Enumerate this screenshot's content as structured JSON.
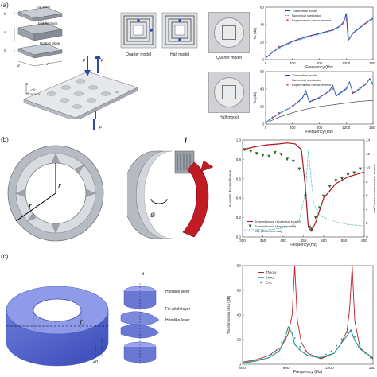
{
  "panels": {
    "a": {
      "label": "(a)",
      "layers": {
        "top": "Top plate",
        "middle": "Middle layer",
        "bottom": "Bottom plate"
      },
      "dims": {
        "h1": "h",
        "H": "H",
        "h2": "h",
        "d1": "d",
        "d2": "d"
      },
      "waves": {
        "pi": "p",
        "pr": "p",
        "pt": "p"
      },
      "models": {
        "quarter": "Quarter model",
        "half": "Half model"
      },
      "photo_captions": {
        "quarter": "Quarter model",
        "half": "Half model"
      },
      "axes": {
        "x": "x",
        "y": "y",
        "z": "z"
      }
    },
    "b": {
      "label": "(b)",
      "dims": {
        "r1": "r",
        "r2": "r",
        "l": "l",
        "phi": "ø"
      }
    },
    "c": {
      "label": "(c)",
      "dims": {
        "D": "D",
        "d": "d",
        "h2": "2h"
      },
      "layer_labels": {
        "upper": "Hornlike layer",
        "middle": "Fix-pitch layer",
        "lower": "Hornlike layer"
      }
    }
  },
  "chart_data": [
    {
      "id": "a-top",
      "type": "line",
      "xlabel": "Frequency (Hz)",
      "ylabel": "TL (dB)",
      "xlim": [
        0,
        1600
      ],
      "ylim": [
        0,
        60
      ],
      "xticks": [
        "0",
        "400",
        "800",
        "1200",
        "1600"
      ],
      "yticks": [
        "0",
        "20",
        "40",
        "60"
      ],
      "legend": [
        "Theoretical model",
        "Numerical simulation",
        "Experimental measurement"
      ],
      "colors": {
        "theory": "#1f3fa8",
        "sim": "#5aa0e0",
        "exp": "#e04040"
      },
      "series": [
        {
          "name": "Theoretical model",
          "x": [
            0,
            100,
            200,
            400,
            600,
            800,
            1000,
            1100,
            1150,
            1180,
            1200,
            1230,
            1300,
            1400,
            1500,
            1600
          ],
          "y": [
            2,
            8,
            14,
            21,
            26,
            30,
            34,
            38,
            42,
            47,
            53,
            22,
            30,
            36,
            42,
            47
          ]
        },
        {
          "name": "Numerical simulation",
          "x": [
            0,
            100,
            200,
            400,
            600,
            800,
            1000,
            1100,
            1150,
            1180,
            1210,
            1240,
            1300,
            1400,
            1500,
            1600
          ],
          "y": [
            2,
            8,
            13,
            20,
            25,
            29,
            33,
            37,
            41,
            46,
            52,
            23,
            31,
            37,
            43,
            48
          ]
        },
        {
          "name": "Experimental measurement",
          "x": [
            100,
            200,
            300,
            400,
            500,
            600,
            700,
            800,
            900,
            1000,
            1100,
            1150,
            1200,
            1250,
            1300,
            1400,
            1500
          ],
          "y": [
            9,
            15,
            18,
            21,
            24,
            26,
            28,
            30,
            32,
            34,
            38,
            41,
            45,
            24,
            30,
            36,
            42
          ]
        }
      ]
    },
    {
      "id": "a-bottom",
      "type": "line",
      "xlabel": "Frequency (Hz)",
      "ylabel": "TL (dB)",
      "xlim": [
        0,
        1600
      ],
      "ylim": [
        0,
        60
      ],
      "xticks": [
        "0",
        "400",
        "800",
        "1200",
        "1600"
      ],
      "yticks": [
        "0",
        "20",
        "40",
        "60"
      ],
      "legend": [
        "Theoretical model",
        "Numerical simulation",
        "Experimental measurement"
      ],
      "colors": {
        "theory": "#1f3fa8",
        "sim": "#5aa0e0",
        "exp": "#e04040",
        "ref": "#333333"
      },
      "series": [
        {
          "name": "Theoretical model",
          "x": [
            0,
            200,
            400,
            550,
            600,
            650,
            800,
            950,
            1000,
            1050,
            1200,
            1250,
            1300,
            1400,
            1500,
            1550,
            1600
          ],
          "y": [
            2,
            12,
            20,
            30,
            38,
            25,
            30,
            38,
            44,
            32,
            40,
            48,
            35,
            40,
            46,
            52,
            45
          ]
        },
        {
          "name": "Numerical simulation",
          "x": [
            0,
            200,
            400,
            550,
            600,
            650,
            800,
            950,
            1000,
            1050,
            1200,
            1250,
            1300,
            1400,
            1500,
            1550,
            1600
          ],
          "y": [
            2,
            12,
            20,
            29,
            37,
            26,
            31,
            37,
            43,
            33,
            41,
            47,
            36,
            41,
            47,
            51,
            46
          ]
        },
        {
          "name": "Experimental measurement",
          "x": [
            100,
            200,
            300,
            400,
            500,
            600,
            700,
            800,
            900,
            1000,
            1100,
            1200,
            1300,
            1400,
            1500
          ],
          "y": [
            8,
            13,
            17,
            21,
            26,
            34,
            27,
            30,
            35,
            40,
            34,
            42,
            36,
            42,
            46
          ]
        },
        {
          "name": "",
          "x": [
            0,
            200,
            400,
            600,
            800,
            1000,
            1200,
            1400,
            1600
          ],
          "y": [
            1,
            8,
            13,
            17,
            20,
            22,
            24,
            26,
            27
          ]
        }
      ]
    },
    {
      "id": "b",
      "type": "line",
      "xlabel": "Frequency (Hz)",
      "ylabel": "Acoustic Transmittance",
      "y2label": "Sound Transmission Loss (dB)",
      "xlim": [
        300,
        600
      ],
      "ylim": [
        0,
        1.0
      ],
      "y2lim": [
        0,
        14
      ],
      "xticks": [
        "300",
        "350",
        "400",
        "450",
        "500",
        "550",
        "600"
      ],
      "yticks": [
        "0.0",
        "0.2",
        "0.4",
        "0.6",
        "0.8",
        "1.0"
      ],
      "y2ticks": [
        "0",
        "2",
        "4",
        "6",
        "8",
        "10",
        "12",
        "14"
      ],
      "legend": [
        "Transmittance (Analytical Model)",
        "Transmittance (Experimental)",
        "STL (Experimental)"
      ],
      "colors": {
        "theory": "#b01020",
        "exp": "#2f6b2f",
        "stl": "#2fb8b0"
      },
      "series": [
        {
          "name": "Transmittance (Analytical Model)",
          "x": [
            300,
            330,
            360,
            390,
            410,
            430,
            445,
            455,
            462,
            470,
            480,
            500,
            530,
            560,
            600
          ],
          "y": [
            0.9,
            0.93,
            0.95,
            0.96,
            0.97,
            0.96,
            0.9,
            0.5,
            0.1,
            0.06,
            0.15,
            0.4,
            0.55,
            0.62,
            0.67
          ]
        },
        {
          "name": "Transmittance (Experimental)",
          "x": [
            305,
            320,
            335,
            350,
            365,
            380,
            395,
            410,
            425,
            440,
            455,
            465,
            470,
            480,
            490,
            500,
            515,
            530,
            545,
            560,
            575,
            590
          ],
          "y": [
            0.9,
            0.88,
            0.86,
            0.84,
            0.83,
            0.87,
            0.85,
            0.8,
            0.78,
            0.7,
            0.42,
            0.1,
            0.08,
            0.2,
            0.3,
            0.42,
            0.52,
            0.58,
            0.6,
            0.64,
            0.66,
            0.7
          ]
        },
        {
          "name": "STL (Experimental)",
          "x": [
            300,
            330,
            360,
            390,
            420,
            440,
            455,
            462,
            468,
            475,
            485,
            500,
            530,
            560,
            600
          ],
          "y": [
            1.0,
            1.1,
            1.0,
            1.2,
            1.5,
            2.5,
            6.5,
            12.5,
            9.0,
            5.0,
            3.5,
            2.8,
            2.2,
            1.8,
            1.6
          ]
        }
      ]
    },
    {
      "id": "c",
      "type": "line",
      "xlabel": "Frequency (Hz)",
      "ylabel": "Transmission loss (dB)",
      "xlim": [
        600,
        1600
      ],
      "ylim": [
        0,
        90
      ],
      "xticks": [
        "600",
        "900",
        "1200",
        "1500"
      ],
      "yticks": [
        "0",
        "20",
        "40",
        "60",
        "80"
      ],
      "legend": [
        "Theory",
        "Simu.",
        "Exp."
      ],
      "colors": {
        "theory": "#c02020",
        "sim": "#2a9a8a",
        "exp": "#3a7ab0"
      },
      "series": [
        {
          "name": "Theory",
          "x": [
            600,
            700,
            800,
            900,
            950,
            980,
            1000,
            1020,
            1050,
            1100,
            1200,
            1300,
            1350,
            1400,
            1420,
            1440,
            1460,
            1500,
            1600
          ],
          "y": [
            2,
            4,
            8,
            16,
            28,
            45,
            90,
            40,
            20,
            10,
            5,
            10,
            18,
            30,
            50,
            90,
            40,
            15,
            5
          ]
        },
        {
          "name": "Simu.",
          "x": [
            600,
            700,
            800,
            880,
            920,
            950,
            980,
            1000,
            1050,
            1100,
            1200,
            1300,
            1350,
            1400,
            1430,
            1460,
            1500,
            1600
          ],
          "y": [
            1,
            3,
            6,
            12,
            22,
            34,
            28,
            18,
            12,
            8,
            6,
            10,
            18,
            26,
            31,
            22,
            14,
            6
          ]
        },
        {
          "name": "Exp.",
          "x": [
            620,
            660,
            700,
            740,
            780,
            820,
            860,
            900,
            930,
            960,
            1000,
            1040,
            1080,
            1120,
            1160,
            1200,
            1240,
            1280,
            1320,
            1360,
            1400,
            1430,
            1460,
            1500,
            1540,
            1580
          ],
          "y": [
            2,
            3,
            4,
            5,
            7,
            9,
            13,
            20,
            28,
            33,
            24,
            16,
            12,
            9,
            7,
            7,
            9,
            12,
            17,
            23,
            29,
            31,
            25,
            16,
            10,
            6
          ]
        }
      ]
    }
  ]
}
